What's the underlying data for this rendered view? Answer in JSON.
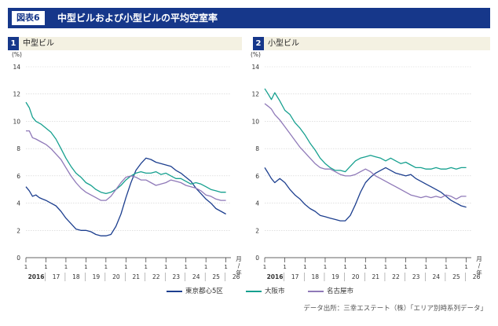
{
  "header": {
    "badge": "図表6",
    "title": "中型ビルおよび小型ビルの平均空室率"
  },
  "panels": [
    {
      "number": "1",
      "title": "中型ビル"
    },
    {
      "number": "2",
      "title": "小型ビル"
    }
  ],
  "legend": [
    {
      "label": "東京都心5区",
      "color": "#1d3f8f"
    },
    {
      "label": "大阪市",
      "color": "#16a08f"
    },
    {
      "label": "名古屋市",
      "color": "#8f79b8"
    }
  ],
  "source": "データ出所：三幸エステート（株）「エリア別時系列データ」",
  "chart_data": [
    {
      "type": "line",
      "title": "中型ビル",
      "yunit": "(%)",
      "ylim": [
        0,
        14
      ],
      "yticks": [
        "0",
        "2",
        "4",
        "6",
        "8",
        "10",
        "12",
        "14"
      ],
      "xlim": [
        2016.0,
        2026.25
      ],
      "month_label": "1",
      "year_labels": [
        "2016",
        "17",
        "18",
        "19",
        "20",
        "21",
        "22",
        "23",
        "24",
        "25",
        "26"
      ],
      "xunit": "月/年",
      "series": [
        {
          "name": "東京都心5区",
          "color": "#1d3f8f",
          "points": [
            [
              2016.0,
              5.2
            ],
            [
              2016.17,
              4.9
            ],
            [
              2016.33,
              4.5
            ],
            [
              2016.5,
              4.6
            ],
            [
              2016.67,
              4.4
            ],
            [
              2016.83,
              4.3
            ],
            [
              2017.0,
              4.2
            ],
            [
              2017.25,
              4.0
            ],
            [
              2017.5,
              3.8
            ],
            [
              2017.75,
              3.4
            ],
            [
              2018.0,
              2.9
            ],
            [
              2018.25,
              2.5
            ],
            [
              2018.5,
              2.1
            ],
            [
              2018.75,
              2.0
            ],
            [
              2019.0,
              2.0
            ],
            [
              2019.25,
              1.9
            ],
            [
              2019.5,
              1.7
            ],
            [
              2019.75,
              1.6
            ],
            [
              2020.0,
              1.6
            ],
            [
              2020.25,
              1.7
            ],
            [
              2020.5,
              2.3
            ],
            [
              2020.75,
              3.2
            ],
            [
              2021.0,
              4.4
            ],
            [
              2021.25,
              5.5
            ],
            [
              2021.5,
              6.4
            ],
            [
              2021.75,
              6.9
            ],
            [
              2022.0,
              7.3
            ],
            [
              2022.25,
              7.2
            ],
            [
              2022.5,
              7.0
            ],
            [
              2022.75,
              6.9
            ],
            [
              2023.0,
              6.8
            ],
            [
              2023.25,
              6.7
            ],
            [
              2023.5,
              6.4
            ],
            [
              2023.75,
              6.2
            ],
            [
              2024.0,
              5.9
            ],
            [
              2024.25,
              5.6
            ],
            [
              2024.5,
              5.1
            ],
            [
              2024.75,
              4.7
            ],
            [
              2025.0,
              4.3
            ],
            [
              2025.25,
              4.0
            ],
            [
              2025.5,
              3.6
            ],
            [
              2025.75,
              3.4
            ],
            [
              2026.0,
              3.2
            ]
          ]
        },
        {
          "name": "大阪市",
          "color": "#16a08f",
          "points": [
            [
              2016.0,
              11.4
            ],
            [
              2016.17,
              11.0
            ],
            [
              2016.33,
              10.3
            ],
            [
              2016.5,
              10.0
            ],
            [
              2016.75,
              9.8
            ],
            [
              2017.0,
              9.5
            ],
            [
              2017.25,
              9.2
            ],
            [
              2017.5,
              8.7
            ],
            [
              2017.75,
              8.0
            ],
            [
              2018.0,
              7.3
            ],
            [
              2018.25,
              6.7
            ],
            [
              2018.5,
              6.2
            ],
            [
              2018.75,
              5.9
            ],
            [
              2019.0,
              5.5
            ],
            [
              2019.25,
              5.3
            ],
            [
              2019.5,
              5.0
            ],
            [
              2019.75,
              4.8
            ],
            [
              2020.0,
              4.7
            ],
            [
              2020.25,
              4.8
            ],
            [
              2020.5,
              5.0
            ],
            [
              2020.75,
              5.3
            ],
            [
              2021.0,
              5.7
            ],
            [
              2021.25,
              6.0
            ],
            [
              2021.5,
              6.2
            ],
            [
              2021.75,
              6.3
            ],
            [
              2022.0,
              6.2
            ],
            [
              2022.25,
              6.2
            ],
            [
              2022.5,
              6.3
            ],
            [
              2022.75,
              6.1
            ],
            [
              2023.0,
              6.2
            ],
            [
              2023.25,
              6.0
            ],
            [
              2023.5,
              5.8
            ],
            [
              2023.75,
              5.8
            ],
            [
              2024.0,
              5.6
            ],
            [
              2024.25,
              5.4
            ],
            [
              2024.5,
              5.5
            ],
            [
              2024.75,
              5.4
            ],
            [
              2025.0,
              5.2
            ],
            [
              2025.25,
              5.0
            ],
            [
              2025.5,
              4.9
            ],
            [
              2025.75,
              4.8
            ],
            [
              2026.0,
              4.8
            ]
          ]
        },
        {
          "name": "名古屋市",
          "color": "#8f79b8",
          "points": [
            [
              2016.0,
              9.3
            ],
            [
              2016.17,
              9.3
            ],
            [
              2016.33,
              8.8
            ],
            [
              2016.5,
              8.7
            ],
            [
              2016.75,
              8.5
            ],
            [
              2017.0,
              8.3
            ],
            [
              2017.25,
              8.0
            ],
            [
              2017.5,
              7.6
            ],
            [
              2017.75,
              7.2
            ],
            [
              2018.0,
              6.6
            ],
            [
              2018.25,
              6.0
            ],
            [
              2018.5,
              5.5
            ],
            [
              2018.75,
              5.1
            ],
            [
              2019.0,
              4.8
            ],
            [
              2019.25,
              4.6
            ],
            [
              2019.5,
              4.4
            ],
            [
              2019.75,
              4.2
            ],
            [
              2020.0,
              4.2
            ],
            [
              2020.25,
              4.5
            ],
            [
              2020.5,
              5.0
            ],
            [
              2020.75,
              5.5
            ],
            [
              2021.0,
              5.9
            ],
            [
              2021.25,
              6.0
            ],
            [
              2021.5,
              5.9
            ],
            [
              2021.75,
              5.7
            ],
            [
              2022.0,
              5.7
            ],
            [
              2022.25,
              5.5
            ],
            [
              2022.5,
              5.3
            ],
            [
              2022.75,
              5.4
            ],
            [
              2023.0,
              5.5
            ],
            [
              2023.25,
              5.7
            ],
            [
              2023.5,
              5.6
            ],
            [
              2023.75,
              5.5
            ],
            [
              2024.0,
              5.3
            ],
            [
              2024.25,
              5.2
            ],
            [
              2024.5,
              5.1
            ],
            [
              2024.75,
              4.9
            ],
            [
              2025.0,
              4.6
            ],
            [
              2025.25,
              4.5
            ],
            [
              2025.5,
              4.3
            ],
            [
              2025.75,
              4.2
            ],
            [
              2026.0,
              4.2
            ]
          ]
        }
      ]
    },
    {
      "type": "line",
      "title": "小型ビル",
      "yunit": "(%)",
      "ylim": [
        0,
        14
      ],
      "yticks": [
        "0",
        "2",
        "4",
        "6",
        "8",
        "10",
        "12",
        "14"
      ],
      "xlim": [
        2016.0,
        2026.25
      ],
      "month_label": "1",
      "year_labels": [
        "2016",
        "17",
        "18",
        "19",
        "20",
        "21",
        "22",
        "23",
        "24",
        "25",
        "26"
      ],
      "xunit": "月/年",
      "series": [
        {
          "name": "東京都心5区",
          "color": "#1d3f8f",
          "points": [
            [
              2016.0,
              6.6
            ],
            [
              2016.17,
              6.2
            ],
            [
              2016.33,
              5.8
            ],
            [
              2016.5,
              5.5
            ],
            [
              2016.75,
              5.8
            ],
            [
              2017.0,
              5.5
            ],
            [
              2017.25,
              5.0
            ],
            [
              2017.5,
              4.6
            ],
            [
              2017.75,
              4.3
            ],
            [
              2018.0,
              3.9
            ],
            [
              2018.25,
              3.6
            ],
            [
              2018.5,
              3.4
            ],
            [
              2018.75,
              3.1
            ],
            [
              2019.0,
              3.0
            ],
            [
              2019.25,
              2.9
            ],
            [
              2019.5,
              2.8
            ],
            [
              2019.75,
              2.7
            ],
            [
              2020.0,
              2.7
            ],
            [
              2020.25,
              3.1
            ],
            [
              2020.5,
              3.9
            ],
            [
              2020.75,
              4.8
            ],
            [
              2021.0,
              5.5
            ],
            [
              2021.25,
              5.9
            ],
            [
              2021.5,
              6.2
            ],
            [
              2021.75,
              6.4
            ],
            [
              2022.0,
              6.6
            ],
            [
              2022.25,
              6.4
            ],
            [
              2022.5,
              6.2
            ],
            [
              2022.75,
              6.1
            ],
            [
              2023.0,
              6.0
            ],
            [
              2023.25,
              6.1
            ],
            [
              2023.5,
              5.8
            ],
            [
              2023.75,
              5.6
            ],
            [
              2024.0,
              5.4
            ],
            [
              2024.25,
              5.2
            ],
            [
              2024.5,
              5.0
            ],
            [
              2024.75,
              4.8
            ],
            [
              2025.0,
              4.5
            ],
            [
              2025.25,
              4.2
            ],
            [
              2025.5,
              4.0
            ],
            [
              2025.75,
              3.8
            ],
            [
              2026.0,
              3.7
            ]
          ]
        },
        {
          "name": "大阪市",
          "color": "#16a08f",
          "points": [
            [
              2016.0,
              12.4
            ],
            [
              2016.17,
              12.0
            ],
            [
              2016.33,
              11.6
            ],
            [
              2016.5,
              12.1
            ],
            [
              2016.75,
              11.5
            ],
            [
              2017.0,
              10.8
            ],
            [
              2017.25,
              10.5
            ],
            [
              2017.5,
              9.9
            ],
            [
              2017.75,
              9.5
            ],
            [
              2018.0,
              9.0
            ],
            [
              2018.25,
              8.4
            ],
            [
              2018.5,
              7.9
            ],
            [
              2018.75,
              7.3
            ],
            [
              2019.0,
              6.9
            ],
            [
              2019.25,
              6.6
            ],
            [
              2019.5,
              6.4
            ],
            [
              2019.75,
              6.4
            ],
            [
              2020.0,
              6.3
            ],
            [
              2020.25,
              6.7
            ],
            [
              2020.5,
              7.1
            ],
            [
              2020.75,
              7.3
            ],
            [
              2021.0,
              7.4
            ],
            [
              2021.25,
              7.5
            ],
            [
              2021.5,
              7.4
            ],
            [
              2021.75,
              7.3
            ],
            [
              2022.0,
              7.1
            ],
            [
              2022.25,
              7.3
            ],
            [
              2022.5,
              7.1
            ],
            [
              2022.75,
              6.9
            ],
            [
              2023.0,
              7.0
            ],
            [
              2023.25,
              6.8
            ],
            [
              2023.5,
              6.6
            ],
            [
              2023.75,
              6.6
            ],
            [
              2024.0,
              6.5
            ],
            [
              2024.25,
              6.5
            ],
            [
              2024.5,
              6.6
            ],
            [
              2024.75,
              6.5
            ],
            [
              2025.0,
              6.5
            ],
            [
              2025.25,
              6.6
            ],
            [
              2025.5,
              6.5
            ],
            [
              2025.75,
              6.6
            ],
            [
              2026.0,
              6.6
            ]
          ]
        },
        {
          "name": "名古屋市",
          "color": "#8f79b8",
          "points": [
            [
              2016.0,
              11.3
            ],
            [
              2016.17,
              11.1
            ],
            [
              2016.33,
              10.9
            ],
            [
              2016.5,
              10.5
            ],
            [
              2016.75,
              10.1
            ],
            [
              2017.0,
              9.6
            ],
            [
              2017.25,
              9.1
            ],
            [
              2017.5,
              8.6
            ],
            [
              2017.75,
              8.1
            ],
            [
              2018.0,
              7.7
            ],
            [
              2018.25,
              7.3
            ],
            [
              2018.5,
              6.9
            ],
            [
              2018.75,
              6.6
            ],
            [
              2019.0,
              6.5
            ],
            [
              2019.25,
              6.5
            ],
            [
              2019.5,
              6.3
            ],
            [
              2019.75,
              6.1
            ],
            [
              2020.0,
              6.0
            ],
            [
              2020.25,
              6.0
            ],
            [
              2020.5,
              6.1
            ],
            [
              2020.75,
              6.3
            ],
            [
              2021.0,
              6.5
            ],
            [
              2021.25,
              6.3
            ],
            [
              2021.5,
              6.0
            ],
            [
              2021.75,
              5.8
            ],
            [
              2022.0,
              5.6
            ],
            [
              2022.25,
              5.4
            ],
            [
              2022.5,
              5.2
            ],
            [
              2022.75,
              5.0
            ],
            [
              2023.0,
              4.8
            ],
            [
              2023.25,
              4.6
            ],
            [
              2023.5,
              4.5
            ],
            [
              2023.75,
              4.4
            ],
            [
              2024.0,
              4.5
            ],
            [
              2024.25,
              4.4
            ],
            [
              2024.5,
              4.5
            ],
            [
              2024.75,
              4.4
            ],
            [
              2025.0,
              4.6
            ],
            [
              2025.25,
              4.5
            ],
            [
              2025.5,
              4.3
            ],
            [
              2025.75,
              4.5
            ],
            [
              2026.0,
              4.5
            ]
          ]
        }
      ]
    }
  ]
}
